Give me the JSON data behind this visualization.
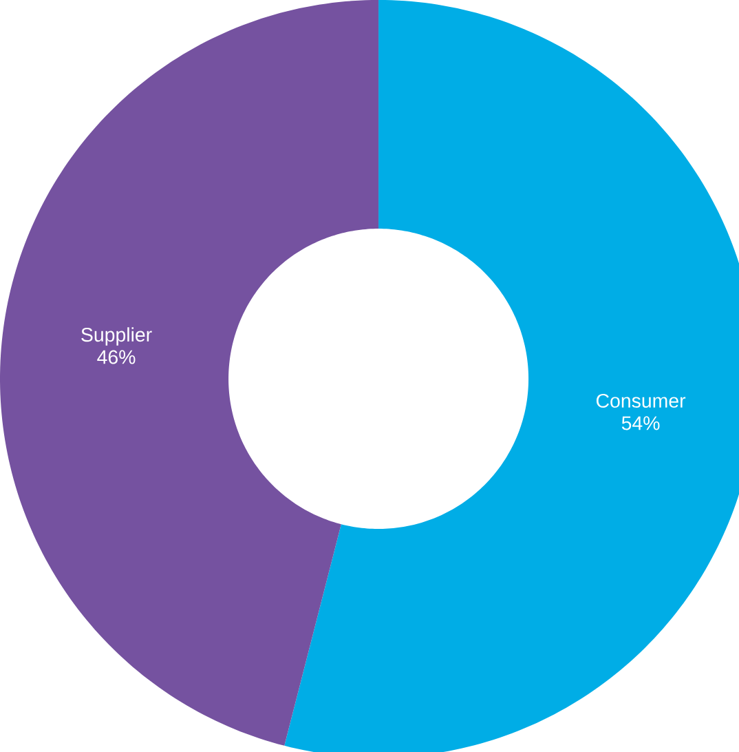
{
  "chart_data": {
    "type": "donut",
    "categories": [
      "Consumer",
      "Supplier"
    ],
    "values": [
      54,
      46
    ],
    "colors": [
      "#00ade6",
      "#7552a0"
    ],
    "value_labels": [
      "54%",
      "46%"
    ]
  }
}
